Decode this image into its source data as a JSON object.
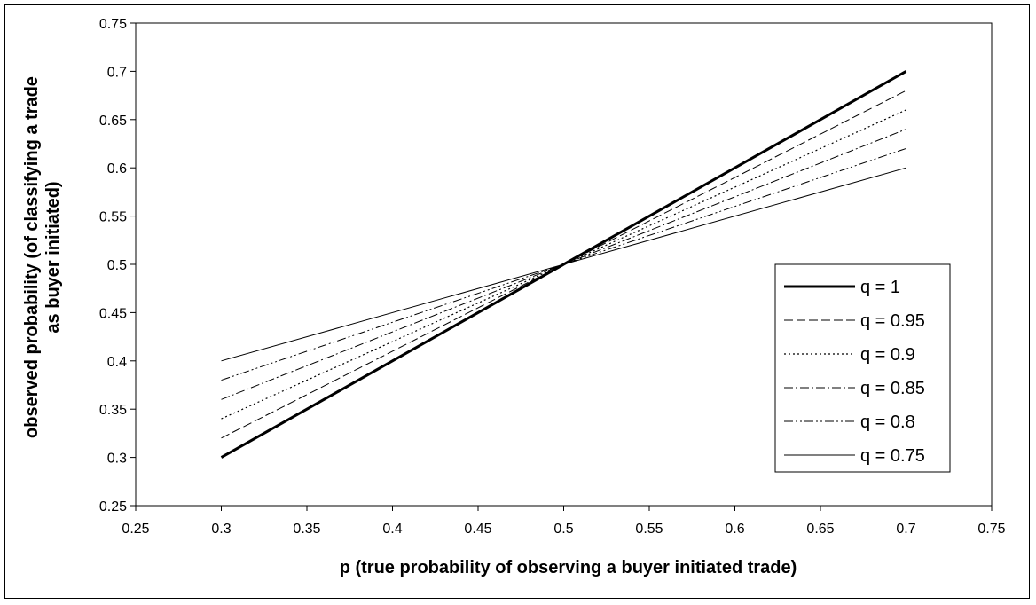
{
  "chart_data": {
    "type": "line",
    "xlabel": "p (true probability of observing a buyer initiated trade)",
    "ylabel": [
      "observed probability (of classifying a trade",
      "as buyer initiated)"
    ],
    "xlim": [
      0.25,
      0.75
    ],
    "ylim": [
      0.25,
      0.75
    ],
    "x_ticks": [
      "0.25",
      "0.3",
      "0.35",
      "0.4",
      "0.45",
      "0.5",
      "0.55",
      "0.6",
      "0.65",
      "0.7",
      "0.75"
    ],
    "y_ticks": [
      "0.25",
      "0.3",
      "0.35",
      "0.4",
      "0.45",
      "0.5",
      "0.55",
      "0.6",
      "0.65",
      "0.7",
      "0.75"
    ],
    "grid": false,
    "legend_position": "right",
    "x": [
      0.3,
      0.7
    ],
    "series": [
      {
        "name": "q = 1",
        "values": [
          0.3,
          0.7
        ],
        "style": "solid-thick"
      },
      {
        "name": "q = 0.95",
        "values": [
          0.32,
          0.68
        ],
        "style": "dashed"
      },
      {
        "name": "q = 0.9",
        "values": [
          0.34,
          0.66
        ],
        "style": "dotted"
      },
      {
        "name": "q = 0.85",
        "values": [
          0.36,
          0.64
        ],
        "style": "dash-dot"
      },
      {
        "name": "q = 0.8",
        "values": [
          0.38,
          0.62
        ],
        "style": "dash-dot-dot"
      },
      {
        "name": "q = 0.75",
        "values": [
          0.4,
          0.6
        ],
        "style": "solid-thin"
      }
    ]
  }
}
